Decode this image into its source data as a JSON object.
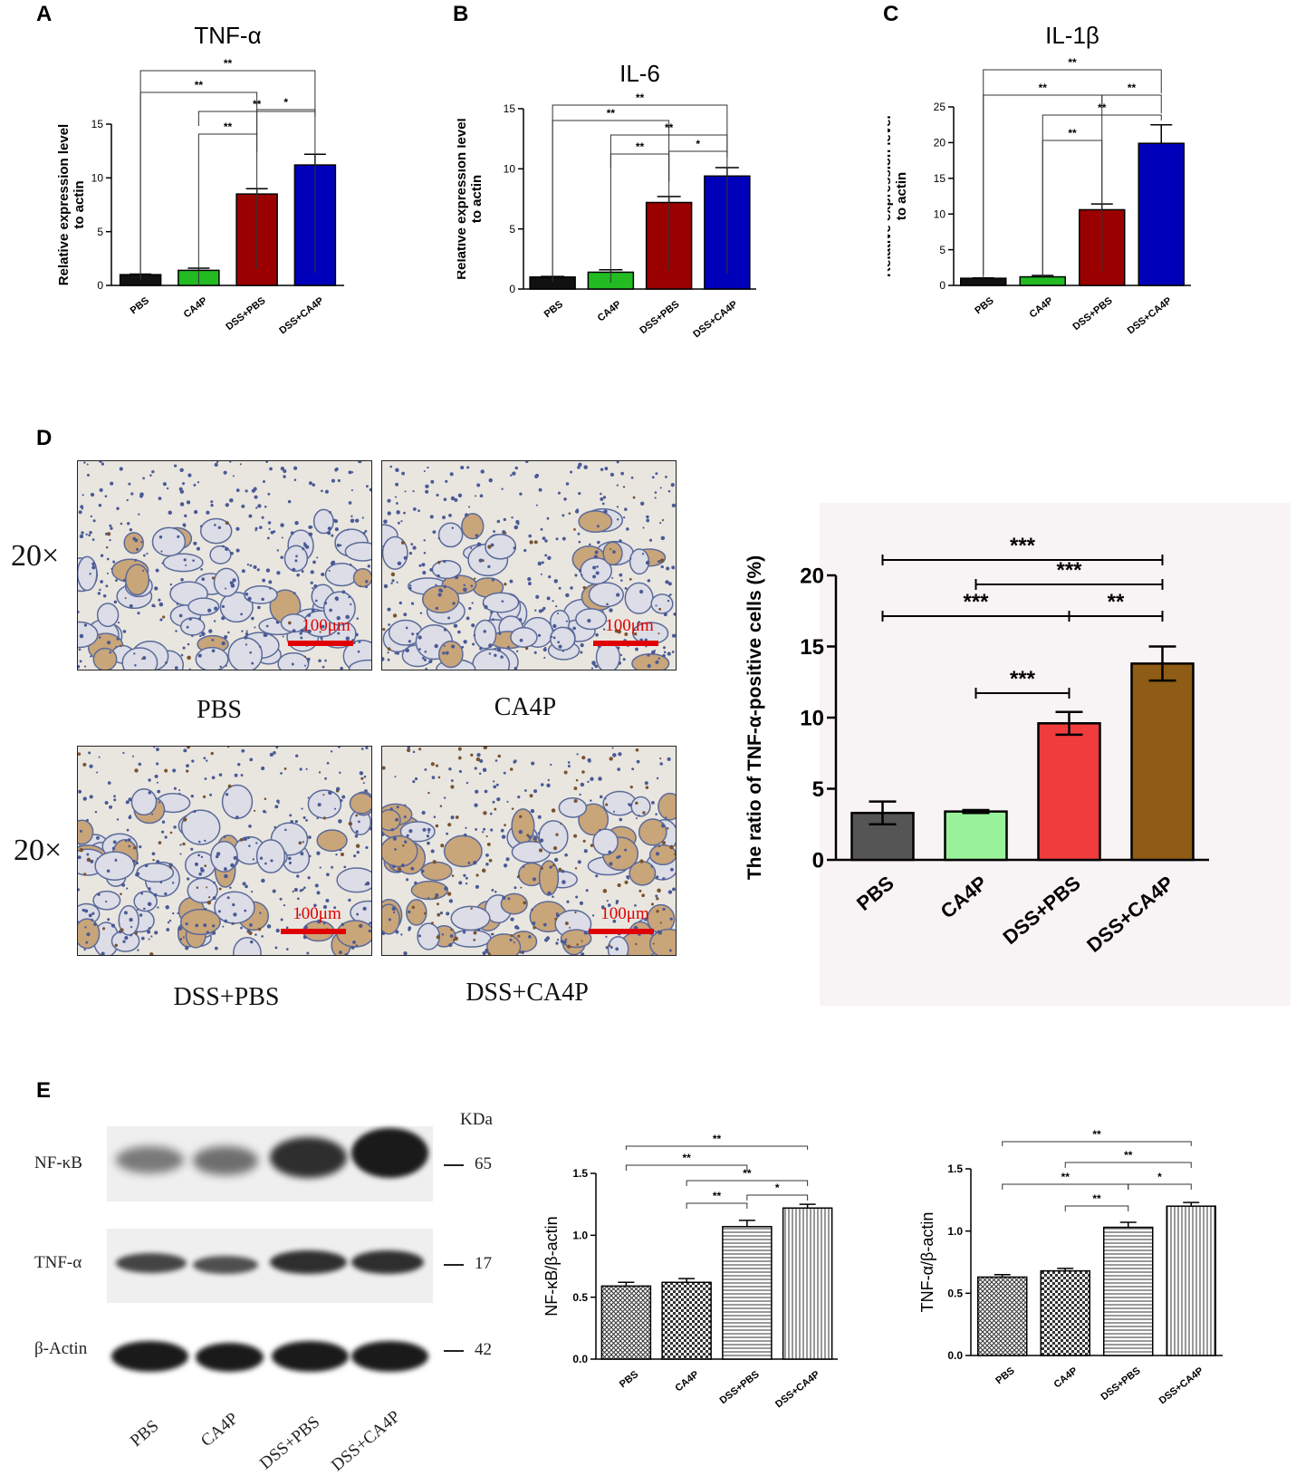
{
  "panel_labels": {
    "a": "A",
    "b": "B",
    "c": "C",
    "d": "D",
    "e": "E"
  },
  "ihc": {
    "magnification": "20×",
    "scale_bar": "100μm",
    "groups": [
      "PBS",
      "CA4P",
      "DSS+PBS",
      "DSS+CA4P"
    ]
  },
  "western": {
    "kda_label": "KDa",
    "rows": [
      {
        "label": "NF-κB",
        "kda": "65"
      },
      {
        "label": "TNF-α",
        "kda": "17"
      },
      {
        "label": "β-Actin",
        "kda": "42"
      }
    ],
    "lanes": [
      "PBS",
      "CA4P",
      "DSS+PBS",
      "DSS+CA4P"
    ]
  },
  "chart_data": [
    {
      "id": "A",
      "type": "bar",
      "title": "TNF-α",
      "ylabel": "Relative expression level to actin",
      "categories": [
        "PBS",
        "CA4P",
        "DSS+PBS",
        "DSS+CA4P"
      ],
      "values": [
        1.0,
        1.4,
        8.5,
        11.2
      ],
      "errors": [
        0.05,
        0.2,
        0.5,
        1.0
      ],
      "ylim": [
        0,
        15
      ],
      "yticks": [
        0,
        5,
        10,
        15
      ],
      "colors": [
        "#111111",
        "#22bb22",
        "#9b0000",
        "#0000bb"
      ],
      "significance": [
        {
          "from": 0,
          "to": 3,
          "label": "**"
        },
        {
          "from": 0,
          "to": 2,
          "label": "**"
        },
        {
          "from": 1,
          "to": 3,
          "label": "**"
        },
        {
          "from": 1,
          "to": 2,
          "label": "**"
        },
        {
          "from": 2,
          "to": 3,
          "label": "*"
        }
      ]
    },
    {
      "id": "B",
      "type": "bar",
      "title": "IL-6",
      "ylabel": "Relative expression level to actin",
      "categories": [
        "PBS",
        "CA4P",
        "DSS+PBS",
        "DSS+CA4P"
      ],
      "values": [
        1.0,
        1.4,
        7.2,
        9.4
      ],
      "errors": [
        0.05,
        0.2,
        0.5,
        0.7
      ],
      "ylim": [
        0,
        15
      ],
      "yticks": [
        0,
        5,
        10,
        15
      ],
      "colors": [
        "#111111",
        "#22bb22",
        "#9b0000",
        "#0000bb"
      ],
      "significance": [
        {
          "from": 0,
          "to": 3,
          "label": "**"
        },
        {
          "from": 0,
          "to": 2,
          "label": "**"
        },
        {
          "from": 1,
          "to": 3,
          "label": "**"
        },
        {
          "from": 1,
          "to": 2,
          "label": "**"
        },
        {
          "from": 2,
          "to": 3,
          "label": "*"
        }
      ]
    },
    {
      "id": "C",
      "type": "bar",
      "title": "IL-1β",
      "ylabel": "Relative expression level to actin",
      "categories": [
        "PBS",
        "CA4P",
        "DSS+PBS",
        "DSS+CA4P"
      ],
      "values": [
        1.0,
        1.2,
        10.6,
        19.9
      ],
      "errors": [
        0.05,
        0.2,
        0.8,
        2.6
      ],
      "ylim": [
        0,
        25
      ],
      "yticks": [
        0,
        5,
        10,
        15,
        20,
        25
      ],
      "colors": [
        "#111111",
        "#22bb22",
        "#9b0000",
        "#0000bb"
      ],
      "significance": [
        {
          "from": 0,
          "to": 3,
          "label": "**"
        },
        {
          "from": 0,
          "to": 2,
          "label": "**"
        },
        {
          "from": 2,
          "to": 3,
          "label": "**"
        },
        {
          "from": 1,
          "to": 3,
          "label": "**"
        },
        {
          "from": 1,
          "to": 2,
          "label": "**"
        }
      ]
    },
    {
      "id": "D",
      "type": "bar",
      "title": "",
      "ylabel": "The ratio of TNF-α-positive cells (%)",
      "categories": [
        "PBS",
        "CA4P",
        "DSS+PBS",
        "DSS+CA4P"
      ],
      "values": [
        3.3,
        3.4,
        9.6,
        13.8
      ],
      "errors": [
        0.8,
        0.1,
        0.8,
        1.2
      ],
      "ylim": [
        0,
        20
      ],
      "yticks": [
        0,
        5,
        10,
        15,
        20
      ],
      "colors": [
        "#555555",
        "#99f299",
        "#f03c3c",
        "#8e5c14"
      ],
      "significance": [
        {
          "from": 0,
          "to": 3,
          "label": "***"
        },
        {
          "from": 1,
          "to": 3,
          "label": "***"
        },
        {
          "from": 0,
          "to": 2,
          "label": "***"
        },
        {
          "from": 2,
          "to": 3,
          "label": "**"
        },
        {
          "from": 1,
          "to": 2,
          "label": "***"
        }
      ]
    },
    {
      "id": "E1",
      "type": "bar",
      "title": "",
      "ylabel": "NF-κB/β-actin",
      "categories": [
        "PBS",
        "CA4P",
        "DSS+PBS",
        "DSS+CA4P"
      ],
      "values": [
        0.59,
        0.62,
        1.07,
        1.22
      ],
      "errors": [
        0.03,
        0.03,
        0.05,
        0.03
      ],
      "ylim": [
        0,
        1.5
      ],
      "yticks": [
        0.0,
        0.5,
        1.0,
        1.5
      ],
      "ytick_labels": [
        "0.0",
        "0.5",
        "1.0",
        "1.5"
      ],
      "patterns": [
        "crosshatch",
        "checker",
        "horizontal",
        "vertical"
      ],
      "significance": [
        {
          "from": 0,
          "to": 3,
          "label": "**"
        },
        {
          "from": 0,
          "to": 2,
          "label": "**"
        },
        {
          "from": 1,
          "to": 3,
          "label": "**"
        },
        {
          "from": 1,
          "to": 2,
          "label": "**"
        },
        {
          "from": 2,
          "to": 3,
          "label": "*"
        }
      ]
    },
    {
      "id": "E2",
      "type": "bar",
      "title": "",
      "ylabel": "TNF-α/β-actin",
      "categories": [
        "PBS",
        "CA4P",
        "DSS+PBS",
        "DSS+CA4P"
      ],
      "values": [
        0.63,
        0.68,
        1.03,
        1.2
      ],
      "errors": [
        0.02,
        0.02,
        0.04,
        0.03
      ],
      "ylim": [
        0,
        1.5
      ],
      "yticks": [
        0.0,
        0.5,
        1.0,
        1.5
      ],
      "ytick_labels": [
        "0.0",
        "0.5",
        "1.0",
        "1.5"
      ],
      "patterns": [
        "crosshatch",
        "checker",
        "horizontal",
        "vertical"
      ],
      "significance": [
        {
          "from": 0,
          "to": 3,
          "label": "**"
        },
        {
          "from": 1,
          "to": 3,
          "label": "**"
        },
        {
          "from": 0,
          "to": 2,
          "label": "**"
        },
        {
          "from": 2,
          "to": 3,
          "label": "*"
        },
        {
          "from": 1,
          "to": 2,
          "label": "**"
        }
      ]
    }
  ]
}
